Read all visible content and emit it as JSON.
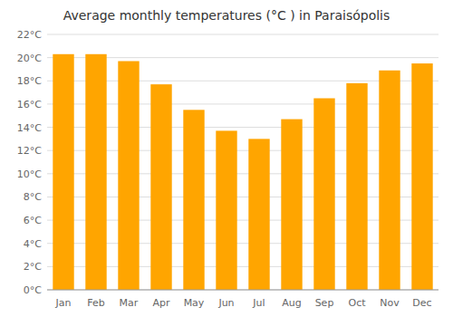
{
  "chart_data": {
    "type": "bar",
    "title": "Average monthly temperatures (°C ) in Paraisópolis",
    "categories": [
      "Jan",
      "Feb",
      "Mar",
      "Apr",
      "May",
      "Jun",
      "Jul",
      "Aug",
      "Sep",
      "Oct",
      "Nov",
      "Dec"
    ],
    "values": [
      20.3,
      20.3,
      19.7,
      17.7,
      15.5,
      13.7,
      13.0,
      14.7,
      16.5,
      17.8,
      18.9,
      19.5
    ],
    "color": "#FFA500",
    "ylim": [
      0,
      22
    ],
    "yticks": [
      {
        "value": 0,
        "label": "0°C"
      },
      {
        "value": 2,
        "label": "2°C"
      },
      {
        "value": 4,
        "label": "4°C"
      },
      {
        "value": 6,
        "label": "6°C"
      },
      {
        "value": 8,
        "label": "8°C"
      },
      {
        "value": 10,
        "label": "10°C"
      },
      {
        "value": 12,
        "label": "12°C"
      },
      {
        "value": 14,
        "label": "14°C"
      },
      {
        "value": 16,
        "label": "16°C"
      },
      {
        "value": 18,
        "label": "18°C"
      },
      {
        "value": 20,
        "label": "20°C"
      },
      {
        "value": 22,
        "label": "22°C"
      }
    ],
    "grid": true
  }
}
